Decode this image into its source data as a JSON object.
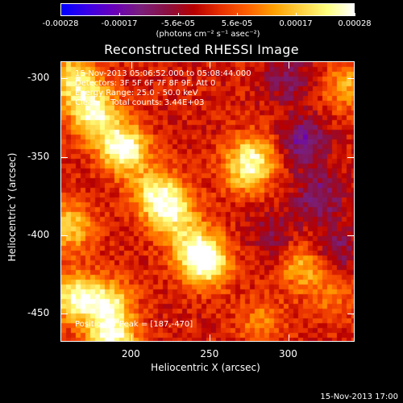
{
  "colorbar": {
    "tick_labels": [
      "-0.00028",
      "-0.00017",
      "-5.6e-05",
      "5.6e-05",
      "0.00017",
      "0.00028"
    ],
    "unit_label": "(photons cm⁻² s⁻¹ asec⁻²)",
    "colormap": [
      "#0000ff",
      "#3b00e6",
      "#6a00b8",
      "#7a1f7a",
      "#8a1040",
      "#b80000",
      "#e83000",
      "#ff6000",
      "#ffa000",
      "#ffd040",
      "#ffff80",
      "#ffffff"
    ]
  },
  "title": "Reconstructed RHESSI Image",
  "info": {
    "time_range": "15-Nov-2013 05:06:52.000 to 05:08:44.000",
    "detectors": "Detectors: 3F 5F 6F 7F 8F 9F, Att 0",
    "energy_range": "Energy Range: 25.0 - 50.0 keV",
    "clean_counts": "Clean     Total counts: 3.44E+03",
    "peak_position": "Position of Peak = [187,-470]"
  },
  "footer_date": "15-Nov-2013 17:00",
  "chart_data": {
    "type": "heatmap",
    "title": "Reconstructed RHESSI Image",
    "xlabel": "Heliocentric X (arcsec)",
    "ylabel": "Heliocentric Y (arcsec)",
    "xlim": [
      155,
      342
    ],
    "ylim": [
      -468,
      -289
    ],
    "zlim": [
      -0.00028,
      0.00028
    ],
    "x_ticks": [
      200,
      250,
      300
    ],
    "y_ticks": [
      -300,
      -350,
      -400,
      -450
    ],
    "sources": [
      {
        "x": 195,
        "y": -345,
        "value": 0.00028
      },
      {
        "x": 178,
        "y": -325,
        "value": 0.0002
      },
      {
        "x": 170,
        "y": -310,
        "value": 0.00014
      },
      {
        "x": 225,
        "y": -385,
        "value": 0.00022
      },
      {
        "x": 215,
        "y": -372,
        "value": 0.00018
      },
      {
        "x": 248,
        "y": -418,
        "value": 0.00024
      },
      {
        "x": 240,
        "y": -408,
        "value": 0.00017
      },
      {
        "x": 160,
        "y": -395,
        "value": 0.00018
      },
      {
        "x": 163,
        "y": -440,
        "value": 0.00024
      },
      {
        "x": 185,
        "y": -445,
        "value": 0.00022
      },
      {
        "x": 187,
        "y": -468,
        "value": 0.00026
      },
      {
        "x": 278,
        "y": -350,
        "value": 0.00018
      },
      {
        "x": 272,
        "y": -360,
        "value": 0.00012
      },
      {
        "x": 310,
        "y": -420,
        "value": 0.00015
      },
      {
        "x": 328,
        "y": -440,
        "value": 8e-05
      },
      {
        "x": 283,
        "y": -456,
        "value": 0.0001
      },
      {
        "x": 160,
        "y": -297,
        "value": 0.00016
      },
      {
        "x": 338,
        "y": -305,
        "value": 0.00014
      }
    ],
    "negative_sources": [
      {
        "x": 310,
        "y": -340,
        "value": -0.00014
      },
      {
        "x": 320,
        "y": -375,
        "value": -0.00012
      },
      {
        "x": 300,
        "y": -300,
        "value": -0.0001
      },
      {
        "x": 330,
        "y": -410,
        "value": -0.0001
      },
      {
        "x": 290,
        "y": -400,
        "value": -8e-05
      }
    ]
  }
}
